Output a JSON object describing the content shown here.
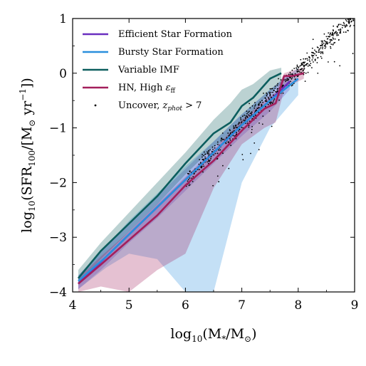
{
  "chart_data": {
    "type": "line",
    "title": "",
    "xlabel": "log10(M*/M☉)",
    "ylabel": "log10(SFR100/[M☉ yr⁻¹])",
    "xlim": [
      4,
      9
    ],
    "ylim": [
      -4,
      1
    ],
    "xticks": [
      4,
      5,
      6,
      7,
      8,
      9
    ],
    "yticks": [
      -4,
      -3,
      -2,
      -1,
      0,
      1
    ],
    "xtick_labels": [
      "4",
      "5",
      "6",
      "7",
      "8",
      "9"
    ],
    "ytick_labels": [
      "−4",
      "−3",
      "−2",
      "−1",
      "0",
      "1"
    ],
    "grid": false,
    "legend_position": "top-left",
    "series": [
      {
        "name": "Efficient Star Formation",
        "color": "#6a2fc0",
        "x": [
          4.1,
          4.5,
          5.0,
          5.5,
          6.0,
          6.5,
          7.0,
          7.5,
          7.85
        ],
        "y": [
          -3.85,
          -3.45,
          -2.95,
          -2.45,
          -1.95,
          -1.45,
          -0.95,
          -0.5,
          -0.15
        ],
        "band_low": [
          -3.95,
          -3.6,
          -3.1,
          -2.65,
          -2.15,
          -1.65,
          -1.15,
          -0.7,
          -0.3
        ],
        "band_high": [
          -3.7,
          -3.25,
          -2.75,
          -2.25,
          -1.75,
          -1.25,
          -0.75,
          -0.3,
          0.0
        ]
      },
      {
        "name": "Bursty Star Formation",
        "color": "#2a8fdd",
        "x": [
          4.1,
          4.6,
          5.0,
          5.5,
          6.0,
          6.5,
          7.0,
          7.5,
          8.0
        ],
        "y": [
          -3.8,
          -3.35,
          -2.95,
          -2.45,
          -1.95,
          -1.45,
          -0.95,
          -0.5,
          -0.1
        ],
        "band_low": [
          -3.95,
          -3.55,
          -3.3,
          -3.4,
          -4.0,
          -4.0,
          -2.0,
          -1.0,
          -0.4
        ],
        "band_high": [
          -3.7,
          -3.15,
          -2.7,
          -2.2,
          -1.7,
          -1.25,
          -0.75,
          -0.3,
          0.1
        ]
      },
      {
        "name": "Variable IMF",
        "color": "#0c5e5e",
        "x": [
          4.1,
          4.5,
          5.0,
          5.5,
          6.0,
          6.5,
          6.8,
          7.0,
          7.2,
          7.5,
          7.7
        ],
        "y": [
          -3.75,
          -3.25,
          -2.75,
          -2.25,
          -1.65,
          -1.1,
          -0.9,
          -0.6,
          -0.45,
          -0.1,
          0.0
        ],
        "band_low": [
          -3.85,
          -3.4,
          -2.9,
          -2.4,
          -1.85,
          -1.35,
          -1.15,
          -0.95,
          -0.7,
          -0.35,
          -0.2
        ],
        "band_high": [
          -3.6,
          -3.1,
          -2.55,
          -2.0,
          -1.45,
          -0.85,
          -0.55,
          -0.3,
          -0.2,
          0.05,
          0.1
        ]
      },
      {
        "name": "HN, High εff",
        "color": "#a31f5c",
        "x": [
          4.1,
          4.5,
          5.0,
          5.5,
          6.0,
          6.5,
          7.0,
          7.4,
          7.6,
          7.75,
          7.9,
          8.1
        ],
        "y": [
          -3.85,
          -3.5,
          -3.05,
          -2.6,
          -2.05,
          -1.6,
          -1.05,
          -0.65,
          -0.55,
          -0.05,
          -0.05,
          0.0
        ],
        "band_low": [
          -4.0,
          -3.9,
          -4.0,
          -3.6,
          -3.3,
          -2.1,
          -1.3,
          -1.0,
          -0.9,
          -0.3,
          -0.2,
          -0.1
        ],
        "band_high": [
          -3.75,
          -3.35,
          -2.9,
          -2.4,
          -1.9,
          -1.4,
          -0.85,
          -0.5,
          -0.35,
          0.0,
          0.05,
          0.1
        ]
      }
    ],
    "scatter": {
      "name": "Uncover, zphot > 7",
      "color": "#000000",
      "x_range": [
        6.0,
        9.0
      ],
      "relation": {
        "slope": 1.0,
        "intercept": -7.95,
        "scatter": 0.08
      },
      "count": 700
    }
  },
  "legend": {
    "items": [
      {
        "label": "Efficient Star Formation",
        "color": "#6a2fc0",
        "kind": "line"
      },
      {
        "label": "Bursty Star Formation",
        "color": "#2a8fdd",
        "kind": "line"
      },
      {
        "label": "Variable IMF",
        "color": "#0c5e5e",
        "kind": "line"
      },
      {
        "label_main": "HN, High ",
        "label_sym": "ε",
        "label_sub": "ff",
        "color": "#a31f5c",
        "kind": "line"
      },
      {
        "label_main": "Uncover, ",
        "label_sym": "z",
        "label_sub": "phot",
        "label_tail": " > 7",
        "color": "#000000",
        "kind": "dot"
      }
    ]
  },
  "axes_text": {
    "x_label_main": "log",
    "x_label_sub": "10",
    "x_label_rest": "(M",
    "x_label_star": "*",
    "x_label_slash": "/M",
    "x_label_sun": "⊙",
    "x_label_close": ")",
    "y_label_main": "log",
    "y_label_sub": "10",
    "y_label_sfr": "(SFR",
    "y_label_sfr_sub": "100",
    "y_label_mid": "/[M",
    "y_label_sun": "⊙",
    "y_label_yr": " yr",
    "y_label_exp": "−1",
    "y_label_close": "])"
  }
}
